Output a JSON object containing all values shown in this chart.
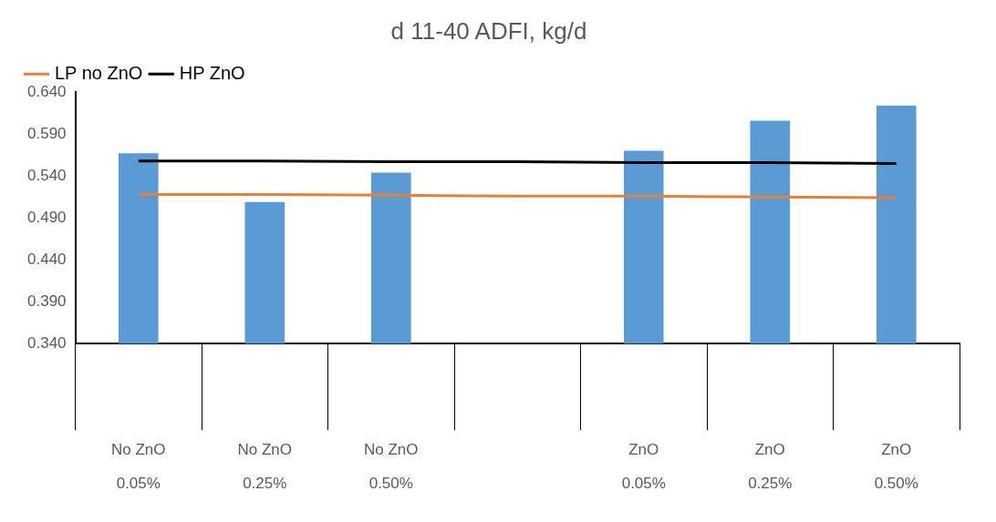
{
  "chart_data": {
    "type": "bar",
    "title": "d 11-40 ADFI, kg/d",
    "categories": [
      "No ZnO\n0.05%",
      "No ZnO\n0.25%",
      "No ZnO\n0.50%",
      null,
      "ZnO\n0.05%",
      "ZnO\n0.25%",
      "ZnO\n0.50%"
    ],
    "series": [
      {
        "color": "#5b9bd5",
        "values": [
          0.567,
          0.509,
          0.544,
          null,
          0.57,
          0.606,
          0.624
        ]
      },
      {
        "name": "LP no ZnO",
        "type": "line",
        "color": "#ed7d31",
        "values": [
          0.518,
          0.518,
          0.517,
          0.516,
          0.516,
          0.515,
          0.514
        ]
      },
      {
        "name": "HP ZnO",
        "type": "line",
        "color": "#000000",
        "values": [
          0.558,
          0.558,
          0.557,
          0.557,
          0.556,
          0.556,
          0.555
        ]
      }
    ],
    "ylim": [
      0.34,
      0.64
    ],
    "yticks": [
      {
        "value": 0.34,
        "label": "0.340"
      },
      {
        "value": 0.39,
        "label": "0.390"
      },
      {
        "value": 0.44,
        "label": "0.440"
      },
      {
        "value": 0.49,
        "label": "0.490"
      },
      {
        "value": 0.54,
        "label": "0.540"
      },
      {
        "value": 0.59,
        "label": "0.590"
      },
      {
        "value": 0.64,
        "label": "0.640"
      }
    ],
    "grid": false,
    "legend": "top left",
    "marker": "none",
    "line_style": "solid"
  }
}
